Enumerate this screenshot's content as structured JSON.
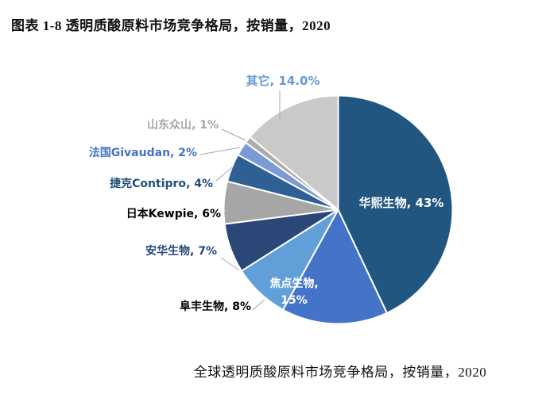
{
  "header": {
    "title": "图表 1-8 透明质酸原料市场竞争格局，按销量，2020"
  },
  "caption": "全球透明质酸原料市场竞争格局，按销量，2020",
  "chart_data": {
    "type": "pie",
    "title": "全球透明质酸原料市场竞争格局，按销量，2020",
    "figure_label": "图表 1-8 透明质酸原料市场竞争格局，按销量，2020",
    "units": "percent of sales volume",
    "year": "2020",
    "start_angle_deg": 0,
    "direction": "clockwise",
    "legend": "none",
    "slices": [
      {
        "id": "huaxi-bio",
        "name": "华熙生物",
        "value": 43,
        "pct_label": "43%",
        "color": "#215680",
        "label_color": "#FFFFFF",
        "label_placement": "inside"
      },
      {
        "id": "focus-bio",
        "name": "焦点生物",
        "value": 15,
        "pct_label": "15%",
        "color": "#4473C8",
        "label_color": "#FFFFFF",
        "label_placement": "inside"
      },
      {
        "id": "fufeng-bio",
        "name": "阜丰生物",
        "value": 8,
        "pct_label": "8%",
        "color": "#619FD9",
        "label_color": "#000000",
        "label_placement": "outside"
      },
      {
        "id": "anhua-bio",
        "name": "安华生物",
        "value": 7,
        "pct_label": "7%",
        "color": "#2A4778",
        "label_color": "#24477C",
        "label_placement": "outside"
      },
      {
        "id": "kewpie-japan",
        "name": "日本Kewpie",
        "value": 6,
        "pct_label": "6%",
        "color": "#A6A6A6",
        "label_color": "#000000",
        "label_placement": "outside"
      },
      {
        "id": "contipro-czech",
        "name": "捷克Contipro",
        "value": 4,
        "pct_label": "4%",
        "color": "#2E6095",
        "label_color": "#1F4E79",
        "label_placement": "outside"
      },
      {
        "id": "givaudan-france",
        "name": "法国Givaudan",
        "value": 2,
        "pct_label": "2%",
        "color": "#7C9AD6",
        "label_color": "#4472C4",
        "label_placement": "outside"
      },
      {
        "id": "shandong-zhongshan",
        "name": "山东众山",
        "value": 1,
        "pct_label": "1%",
        "color": "#ACACAC",
        "label_color": "#A6A6A6",
        "label_placement": "outside"
      },
      {
        "id": "others",
        "name": "其它",
        "value": 14,
        "pct_label": "14.0%",
        "color": "#C9C9C9",
        "label_color": "#659AD2",
        "label_placement": "outside"
      }
    ],
    "leader_line_color": "#A6A6A6",
    "slice_border_color": "#FFFFFF"
  }
}
